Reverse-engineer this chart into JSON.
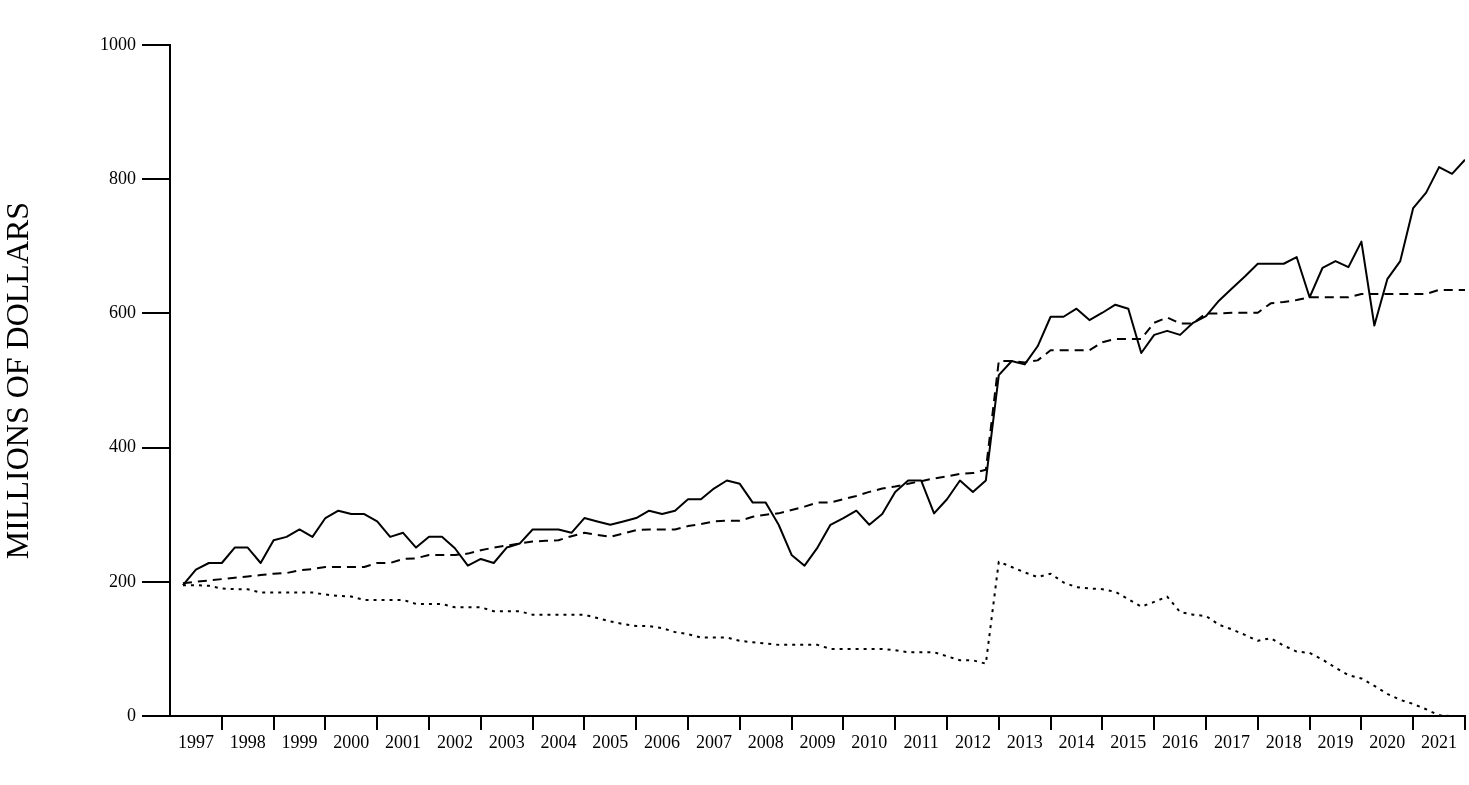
{
  "chart_data": {
    "type": "line",
    "ylabel": "MILLIONS OF DOLLARS",
    "x": [
      1997.25,
      1997.5,
      1997.75,
      1998,
      1998.25,
      1998.5,
      1998.75,
      1999,
      1999.25,
      1999.5,
      1999.75,
      2000,
      2000.25,
      2000.5,
      2000.75,
      2001,
      2001.25,
      2001.5,
      2001.75,
      2002,
      2002.25,
      2002.5,
      2002.75,
      2003,
      2003.25,
      2003.5,
      2003.75,
      2004,
      2004.25,
      2004.5,
      2004.75,
      2005,
      2005.25,
      2005.5,
      2005.75,
      2006,
      2006.25,
      2006.5,
      2006.75,
      2007,
      2007.25,
      2007.5,
      2007.75,
      2008,
      2008.25,
      2008.5,
      2008.75,
      2009,
      2009.25,
      2009.5,
      2009.75,
      2010,
      2010.25,
      2010.5,
      2010.75,
      2011,
      2011.25,
      2011.5,
      2011.75,
      2012,
      2012.25,
      2012.5,
      2012.75,
      2013,
      2013.25,
      2013.5,
      2013.75,
      2014,
      2014.25,
      2014.5,
      2014.75,
      2015,
      2015.25,
      2015.5,
      2015.75,
      2016,
      2016.25,
      2016.5,
      2016.75,
      2017,
      2017.25,
      2017.5,
      2017.75,
      2018,
      2018.25,
      2018.5,
      2018.75,
      2019,
      2019.25,
      2019.5,
      2019.75,
      2020,
      2020.25,
      2020.5,
      2020.75,
      2021,
      2021.25,
      2021.5,
      2021.75,
      2022
    ],
    "series": [
      {
        "color": "#000000",
        "line_style": "solid",
        "values": [
          195,
          218,
          228,
          228,
          251,
          251,
          228,
          262,
          267,
          278,
          267,
          295,
          306,
          301,
          301,
          290,
          267,
          273,
          251,
          267,
          267,
          250,
          224,
          234,
          228,
          251,
          257,
          278,
          278,
          278,
          273,
          295,
          290,
          285,
          290,
          295,
          306,
          301,
          306,
          323,
          323,
          339,
          351,
          346,
          318,
          318,
          285,
          240,
          224,
          251,
          285,
          295,
          306,
          285,
          301,
          334,
          351,
          351,
          302,
          323,
          351,
          334,
          351,
          508,
          529,
          524,
          551,
          595,
          595,
          607,
          590,
          601,
          613,
          607,
          541,
          568,
          574,
          568,
          586,
          596,
          619,
          637,
          655,
          674,
          674,
          674,
          684,
          624,
          668,
          678,
          669,
          707,
          582,
          651,
          678,
          757,
          780,
          818,
          808,
          829
        ]
      },
      {
        "color": "#000000",
        "line_style": "dashed",
        "values": [
          198,
          200,
          202,
          204,
          206,
          208,
          210,
          212,
          213,
          217,
          219,
          222,
          222,
          222,
          222,
          228,
          228,
          234,
          235,
          240,
          240,
          240,
          242,
          247,
          251,
          254,
          257,
          260,
          261,
          262,
          268,
          273,
          270,
          267,
          272,
          277,
          278,
          278,
          278,
          283,
          286,
          290,
          291,
          291,
          297,
          300,
          302,
          307,
          312,
          318,
          318,
          323,
          328,
          334,
          339,
          342,
          346,
          350,
          354,
          357,
          361,
          362,
          367,
          529,
          529,
          527,
          530,
          545,
          545,
          545,
          545,
          557,
          562,
          562,
          562,
          586,
          594,
          585,
          585,
          600,
          600,
          601,
          601,
          601,
          615,
          617,
          620,
          624,
          624,
          624,
          624,
          629,
          629,
          629,
          629,
          629,
          629,
          635,
          635,
          635
        ]
      },
      {
        "color": "#000000",
        "line_style": "dotted",
        "values": [
          195,
          195,
          194,
          190,
          189,
          189,
          184,
          184,
          184,
          184,
          184,
          181,
          179,
          178,
          173,
          173,
          173,
          173,
          167,
          167,
          167,
          162,
          162,
          162,
          156,
          156,
          156,
          151,
          151,
          151,
          151,
          151,
          146,
          141,
          137,
          134,
          134,
          131,
          125,
          122,
          117,
          117,
          117,
          112,
          110,
          108,
          106,
          106,
          106,
          106,
          100,
          100,
          100,
          100,
          100,
          98,
          95,
          95,
          95,
          89,
          83,
          83,
          78,
          230,
          222,
          214,
          207,
          212,
          199,
          192,
          190,
          189,
          185,
          174,
          163,
          170,
          178,
          155,
          151,
          149,
          136,
          129,
          121,
          112,
          116,
          105,
          96,
          94,
          84,
          72,
          61,
          56,
          45,
          33,
          24,
          18,
          10,
          1,
          0,
          0
        ]
      }
    ],
    "xlim": [
      1997,
      2022
    ],
    "xticks": [
      {
        "value": 1997.5,
        "label": "1997"
      },
      {
        "value": 1998,
        "label": null
      },
      {
        "value": 1998.5,
        "label": "1998"
      },
      {
        "value": 1999,
        "label": null
      },
      {
        "value": 1999.5,
        "label": "1999"
      },
      {
        "value": 2000,
        "label": null
      },
      {
        "value": 2000.5,
        "label": "2000"
      },
      {
        "value": 2001,
        "label": null
      },
      {
        "value": 2001.5,
        "label": "2001"
      },
      {
        "value": 2002,
        "label": null
      },
      {
        "value": 2002.5,
        "label": "2002"
      },
      {
        "value": 2003,
        "label": null
      },
      {
        "value": 2003.5,
        "label": "2003"
      },
      {
        "value": 2004,
        "label": null
      },
      {
        "value": 2004.5,
        "label": "2004"
      },
      {
        "value": 2005,
        "label": null
      },
      {
        "value": 2005.5,
        "label": "2005"
      },
      {
        "value": 2006,
        "label": null
      },
      {
        "value": 2006.5,
        "label": "2006"
      },
      {
        "value": 2007,
        "label": null
      },
      {
        "value": 2007.5,
        "label": "2007"
      },
      {
        "value": 2008,
        "label": null
      },
      {
        "value": 2008.5,
        "label": "2008"
      },
      {
        "value": 2009,
        "label": null
      },
      {
        "value": 2009.5,
        "label": "2009"
      },
      {
        "value": 2010,
        "label": null
      },
      {
        "value": 2010.5,
        "label": "2010"
      },
      {
        "value": 2011,
        "label": null
      },
      {
        "value": 2011.5,
        "label": "2011"
      },
      {
        "value": 2012,
        "label": null
      },
      {
        "value": 2012.5,
        "label": "2012"
      },
      {
        "value": 2013,
        "label": null
      },
      {
        "value": 2013.5,
        "label": "2013"
      },
      {
        "value": 2014,
        "label": null
      },
      {
        "value": 2014.5,
        "label": "2014"
      },
      {
        "value": 2015,
        "label": null
      },
      {
        "value": 2015.5,
        "label": "2015"
      },
      {
        "value": 2016,
        "label": null
      },
      {
        "value": 2016.5,
        "label": "2016"
      },
      {
        "value": 2017,
        "label": null
      },
      {
        "value": 2017.5,
        "label": "2017"
      },
      {
        "value": 2018,
        "label": null
      },
      {
        "value": 2018.5,
        "label": "2018"
      },
      {
        "value": 2019,
        "label": null
      },
      {
        "value": 2019.5,
        "label": "2019"
      },
      {
        "value": 2020,
        "label": null
      },
      {
        "value": 2020.5,
        "label": "2020"
      },
      {
        "value": 2021,
        "label": null
      },
      {
        "value": 2021.5,
        "label": "2021"
      },
      {
        "value": 2022,
        "label": null
      }
    ],
    "ylim": [
      0,
      1000
    ],
    "yticks": [
      0,
      200,
      400,
      600,
      800,
      1000
    ],
    "grid": false,
    "legend": false,
    "marker": "none"
  }
}
